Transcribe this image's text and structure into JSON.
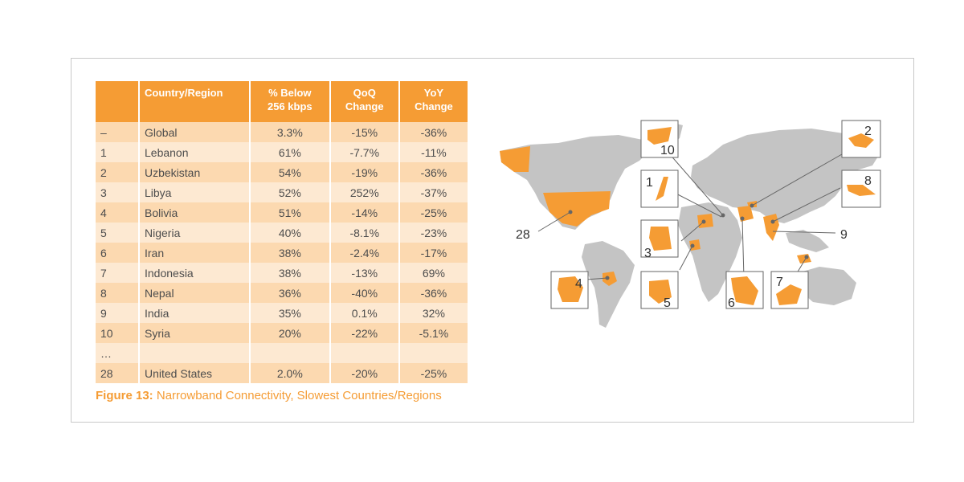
{
  "chart_data": {
    "type": "table",
    "columns": [
      "",
      "Country/Region",
      "% Below 256 kbps",
      "QoQ Change",
      "YoY Change"
    ],
    "header": {
      "rank": "",
      "name": "Country/Region",
      "pct_line1": "% Below",
      "pct_line2": "256 kbps",
      "qoq_line1": "QoQ",
      "qoq_line2": "Change",
      "yoy_line1": "YoY",
      "yoy_line2": "Change"
    },
    "rows": [
      {
        "rank": "–",
        "name": "Global",
        "pct": "3.3%",
        "qoq": "-15%",
        "yoy": "-36%"
      },
      {
        "rank": "1",
        "name": "Lebanon",
        "pct": "61%",
        "qoq": "-7.7%",
        "yoy": "-11%"
      },
      {
        "rank": "2",
        "name": "Uzbekistan",
        "pct": "54%",
        "qoq": "-19%",
        "yoy": "-36%"
      },
      {
        "rank": "3",
        "name": "Libya",
        "pct": "52%",
        "qoq": "252%",
        "yoy": "-37%"
      },
      {
        "rank": "4",
        "name": "Bolivia",
        "pct": "51%",
        "qoq": "-14%",
        "yoy": "-25%"
      },
      {
        "rank": "5",
        "name": "Nigeria",
        "pct": "40%",
        "qoq": "-8.1%",
        "yoy": "-23%"
      },
      {
        "rank": "6",
        "name": "Iran",
        "pct": "38%",
        "qoq": "-2.4%",
        "yoy": "-17%"
      },
      {
        "rank": "7",
        "name": "Indonesia",
        "pct": "38%",
        "qoq": "-13%",
        "yoy": "69%"
      },
      {
        "rank": "8",
        "name": "Nepal",
        "pct": "36%",
        "qoq": "-40%",
        "yoy": "-36%"
      },
      {
        "rank": "9",
        "name": "India",
        "pct": "35%",
        "qoq": "0.1%",
        "yoy": "32%"
      },
      {
        "rank": "10",
        "name": "Syria",
        "pct": "20%",
        "qoq": "-22%",
        "yoy": "-5.1%"
      },
      {
        "rank": "…",
        "name": "",
        "pct": "",
        "qoq": "",
        "yoy": ""
      },
      {
        "rank": "28",
        "name": "United States",
        "pct": "2.0%",
        "qoq": "-20%",
        "yoy": "-25%"
      }
    ],
    "caption_label": "Figure 13:",
    "caption_text": " Narrowband Connectivity, Slowest Countries/Regions",
    "map_labels": [
      "10",
      "2",
      "8",
      "1",
      "28",
      "9",
      "3",
      "4",
      "5",
      "6",
      "7"
    ]
  },
  "colors": {
    "accent": "#f59c34",
    "row_dark": "#fcd9b0",
    "row_light": "#fde9d2",
    "land": "#c4c4c4"
  }
}
